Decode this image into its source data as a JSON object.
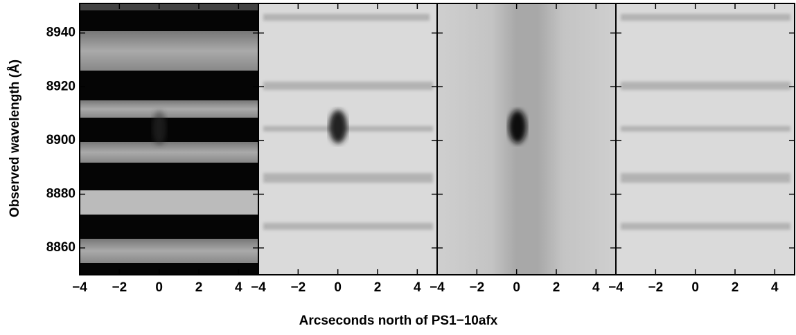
{
  "chart_data": {
    "type": "image",
    "xlabel": "Arcseconds north of PS1−10afx",
    "ylabel": "Observed wavelength (Å)",
    "ylim": [
      8850,
      8951
    ],
    "yticks": [
      8860,
      8880,
      8900,
      8920,
      8940
    ],
    "panels": [
      {
        "xlim": [
          -4,
          5
        ],
        "xticks": [
          {
            "value": -4,
            "label": "−4"
          },
          {
            "value": -2,
            "label": "−2"
          },
          0,
          2,
          4
        ]
      },
      {
        "xlim": [
          -4,
          5
        ],
        "xticks": [
          {
            "value": -4,
            "label": "−4"
          },
          {
            "value": -2,
            "label": "−2"
          },
          0,
          2,
          4
        ]
      },
      {
        "xlim": [
          -4,
          5
        ],
        "xticks": [
          {
            "value": -4,
            "label": "−4"
          },
          {
            "value": -2,
            "label": "−2"
          },
          0,
          2,
          4
        ]
      },
      {
        "xlim": [
          -4,
          5
        ],
        "xticks": [
          {
            "value": -4,
            "label": "−4"
          },
          {
            "value": -2,
            "label": "−2"
          },
          0,
          2,
          4
        ]
      }
    ]
  }
}
